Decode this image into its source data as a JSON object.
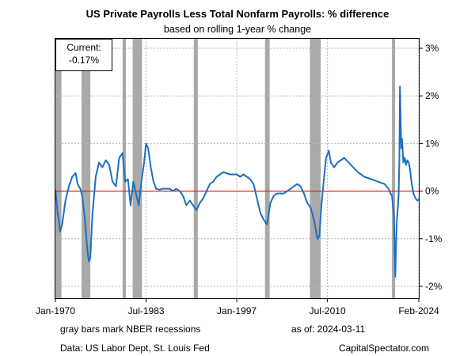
{
  "chart_data": {
    "type": "line",
    "title": "US Private Payrolls Less Total Nonfarm Payrolls: % difference",
    "subtitle": "based on rolling 1-year % change",
    "xlabel": "",
    "ylabel": "",
    "x_ticks": [
      "Jan-1970",
      "Jul-1983",
      "Jan-1997",
      "Jul-2010",
      "Feb-2024"
    ],
    "y_ticks": [
      "3%",
      "2%",
      "1%",
      "0%",
      "-1%",
      "-2%"
    ],
    "y_tick_values": [
      3,
      2,
      1,
      0,
      -1,
      -2
    ],
    "xlim": [
      1970.0,
      2024.1
    ],
    "ylim": [
      -2.25,
      3.2
    ],
    "grid": true,
    "y_axis_side": "right",
    "reference_line": {
      "y": 0,
      "color": "#e01010"
    },
    "line_color": "#1f6fbf",
    "recession_color": "#a9a9a9",
    "recessions": [
      [
        1970.0,
        1970.9
      ],
      [
        1973.9,
        1975.2
      ],
      [
        1980.0,
        1980.5
      ],
      [
        1981.5,
        1982.9
      ],
      [
        1990.6,
        1991.2
      ],
      [
        2001.2,
        2001.9
      ],
      [
        2007.9,
        2009.5
      ],
      [
        2020.1,
        2020.4
      ]
    ],
    "series": [
      {
        "name": "",
        "x": [
          1970.0,
          1970.3,
          1970.7,
          1971.0,
          1971.5,
          1972.0,
          1972.5,
          1973.0,
          1973.3,
          1973.7,
          1974.0,
          1974.4,
          1974.8,
          1975.0,
          1975.2,
          1975.5,
          1976.0,
          1976.5,
          1977.0,
          1977.5,
          1978.0,
          1978.5,
          1979.0,
          1979.5,
          1980.0,
          1980.4,
          1980.8,
          1981.2,
          1981.6,
          1982.0,
          1982.4,
          1982.8,
          1983.2,
          1983.5,
          1983.8,
          1984.2,
          1984.6,
          1985.0,
          1985.5,
          1986.0,
          1986.5,
          1987.0,
          1987.5,
          1988.0,
          1988.5,
          1989.0,
          1989.5,
          1990.0,
          1990.5,
          1991.0,
          1991.5,
          1992.0,
          1992.5,
          1993.0,
          1993.5,
          1994.0,
          1995.0,
          1996.0,
          1997.0,
          1997.5,
          1998.0,
          1999.0,
          1999.5,
          2000.0,
          2000.5,
          2001.0,
          2001.5,
          2002.0,
          2002.5,
          2003.0,
          2004.0,
          2005.0,
          2006.0,
          2006.5,
          2007.0,
          2007.5,
          2008.0,
          2008.5,
          2009.0,
          2009.3,
          2009.6,
          2010.0,
          2010.3,
          2010.7,
          2011.0,
          2011.5,
          2012.0,
          2013.0,
          2014.0,
          2015.0,
          2016.0,
          2017.0,
          2018.0,
          2019.0,
          2019.6,
          2019.9,
          2020.1,
          2020.25,
          2020.4,
          2020.6,
          2020.8,
          2021.0,
          2021.1,
          2021.2,
          2021.3,
          2021.4,
          2021.5,
          2021.6,
          2021.8,
          2022.0,
          2022.2,
          2022.4,
          2022.6,
          2022.8,
          2023.0,
          2023.3,
          2023.6,
          2023.9,
          2024.1
        ],
        "values": [
          0.03,
          -0.4,
          -0.85,
          -0.7,
          -0.2,
          0.1,
          0.3,
          0.38,
          0.15,
          0.05,
          -0.1,
          -0.6,
          -1.3,
          -1.48,
          -1.4,
          -0.5,
          0.3,
          0.6,
          0.5,
          0.65,
          0.55,
          0.2,
          0.1,
          0.7,
          0.8,
          0.2,
          0.25,
          -0.3,
          0.2,
          -0.05,
          -0.3,
          0.2,
          0.6,
          1.0,
          0.9,
          0.5,
          0.2,
          0.05,
          0.03,
          0.05,
          0.05,
          0.05,
          0.0,
          0.05,
          0.0,
          -0.1,
          -0.3,
          -0.2,
          -0.3,
          -0.4,
          -0.25,
          -0.15,
          0.0,
          0.15,
          0.2,
          0.3,
          0.4,
          0.35,
          0.35,
          0.3,
          0.35,
          0.25,
          0.15,
          -0.15,
          -0.45,
          -0.6,
          -0.7,
          -0.25,
          -0.1,
          -0.05,
          -0.05,
          0.05,
          0.15,
          0.1,
          -0.05,
          -0.25,
          -0.35,
          -0.6,
          -1.0,
          -0.95,
          -0.3,
          0.3,
          0.7,
          0.85,
          0.6,
          0.5,
          0.6,
          0.7,
          0.55,
          0.4,
          0.3,
          0.25,
          0.2,
          0.15,
          0.05,
          -0.05,
          -0.1,
          -0.3,
          -0.5,
          -1.8,
          -0.7,
          -0.3,
          -0.1,
          0.6,
          2.2,
          1.5,
          0.9,
          1.1,
          0.6,
          0.7,
          0.55,
          0.65,
          0.6,
          0.45,
          0.2,
          -0.05,
          -0.15,
          -0.2,
          -0.17
        ]
      }
    ]
  },
  "current_box": {
    "label": "Current:",
    "value": "-0.17%"
  },
  "footer": {
    "note_left": "gray bars mark NBER recessions",
    "asof": "as of:  2024-03-11",
    "source": "Data: US Labor Dept, St. Louis Fed",
    "brand": "CapitalSpectator.com"
  }
}
